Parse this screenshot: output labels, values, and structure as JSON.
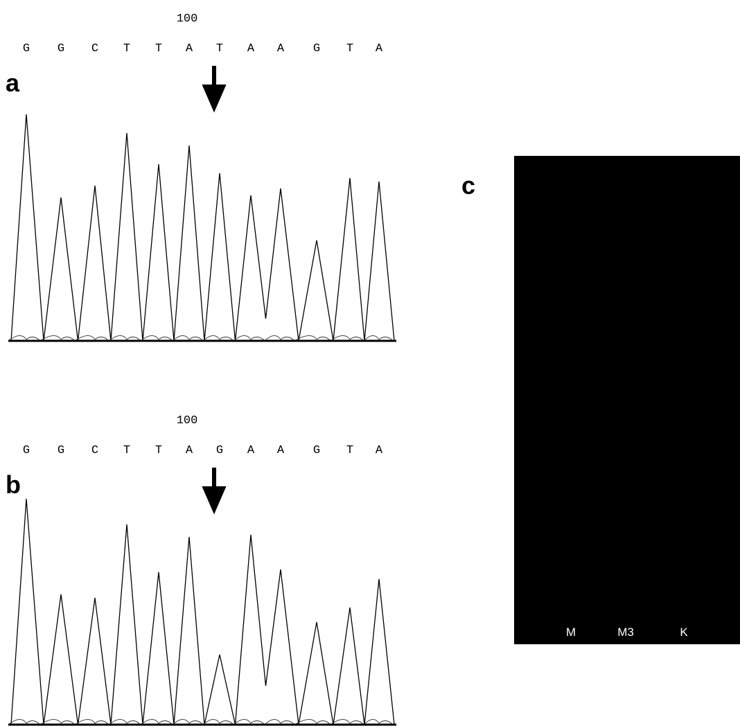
{
  "panels": [
    {
      "label": "a",
      "position": "100",
      "bases": [
        "G",
        "G",
        "C",
        "T",
        "T",
        "A",
        "T",
        "A",
        "A",
        "G",
        "T",
        "A"
      ]
    },
    {
      "label": "b",
      "position": "100",
      "bases": [
        "G",
        "G",
        "C",
        "T",
        "T",
        "A",
        "G",
        "A",
        "A",
        "G",
        "T",
        "A"
      ]
    }
  ],
  "gel": {
    "label": "c",
    "lanes": [
      "M",
      "M3",
      "K"
    ]
  }
}
